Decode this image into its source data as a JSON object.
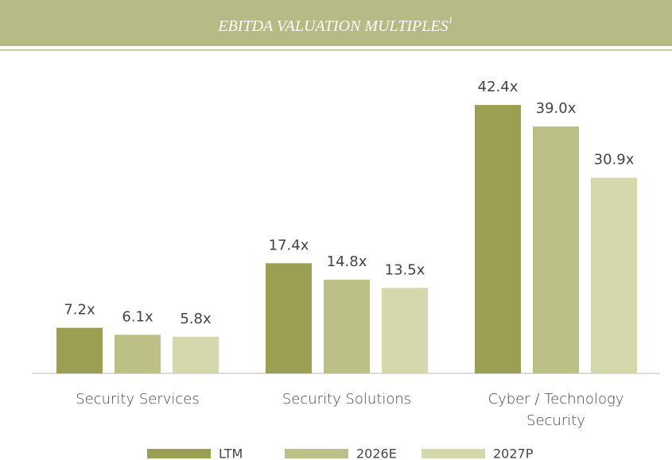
{
  "chart_data": {
    "type": "bar",
    "title": "EBITDA VALUATION MULTIPLES",
    "title_footnote": "1",
    "categories": [
      "Security Services",
      "Security Solutions",
      "Cyber / Technology Security"
    ],
    "series": [
      {
        "name": "LTM",
        "color": "#9b9f52",
        "values": [
          7.2,
          17.4,
          42.4
        ],
        "value_labels": [
          "7.2x",
          "17.4x",
          "42.4x"
        ]
      },
      {
        "name": "2026E",
        "color": "#bcc086",
        "values": [
          6.1,
          14.8,
          39.0
        ],
        "value_labels": [
          "6.1x",
          "14.8x",
          "39.0x"
        ]
      },
      {
        "name": "2027P",
        "color": "#d5d7ad",
        "values": [
          5.8,
          13.5,
          30.9
        ],
        "value_labels": [
          "5.8x",
          "13.5x",
          "30.9x"
        ]
      }
    ],
    "legend": "bottom"
  }
}
